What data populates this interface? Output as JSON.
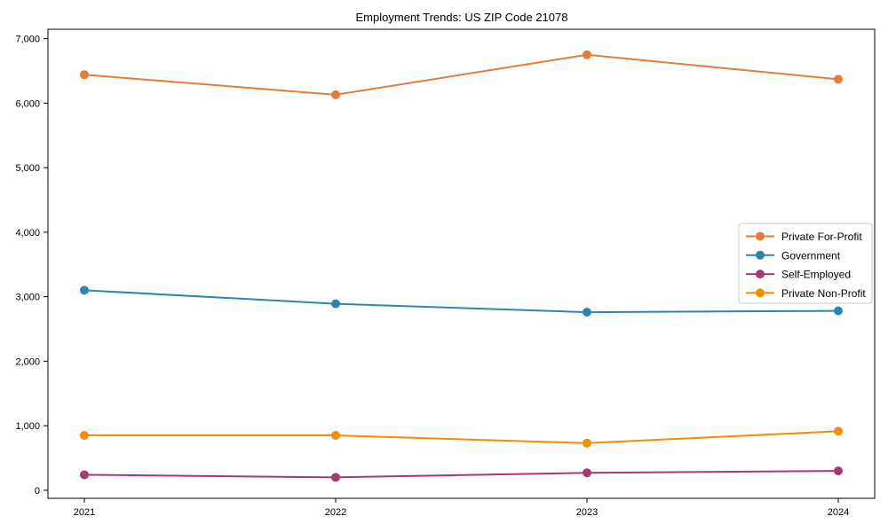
{
  "chart_data": {
    "type": "line",
    "title": "Employment Trends: US ZIP Code 21078",
    "xlabel": "",
    "ylabel": "",
    "categories": [
      "2021",
      "2022",
      "2023",
      "2024"
    ],
    "series": [
      {
        "name": "Private For-Profit",
        "color": "#E47C3A",
        "values": [
          6440,
          6130,
          6750,
          6370
        ]
      },
      {
        "name": "Government",
        "color": "#2E86AB",
        "values": [
          3100,
          2890,
          2760,
          2780
        ]
      },
      {
        "name": "Self-Employed",
        "color": "#A23B72",
        "values": [
          240,
          200,
          270,
          300
        ]
      },
      {
        "name": "Private Non-Profit",
        "color": "#F18F01",
        "values": [
          850,
          850,
          730,
          915
        ]
      }
    ],
    "ylim": [
      0,
      7000
    ],
    "yticks": [
      0,
      1000,
      2000,
      3000,
      4000,
      5000,
      6000,
      7000
    ],
    "ytick_labels": [
      "0",
      "1,000",
      "2,000",
      "3,000",
      "4,000",
      "5,000",
      "6,000",
      "7,000"
    ],
    "grid": false,
    "marker": "circle",
    "legend_position": "center-right",
    "legend_border_color": "#cccccc",
    "axis_color": "#000000",
    "text_color": "#000000",
    "background_color": "#ffffff"
  }
}
